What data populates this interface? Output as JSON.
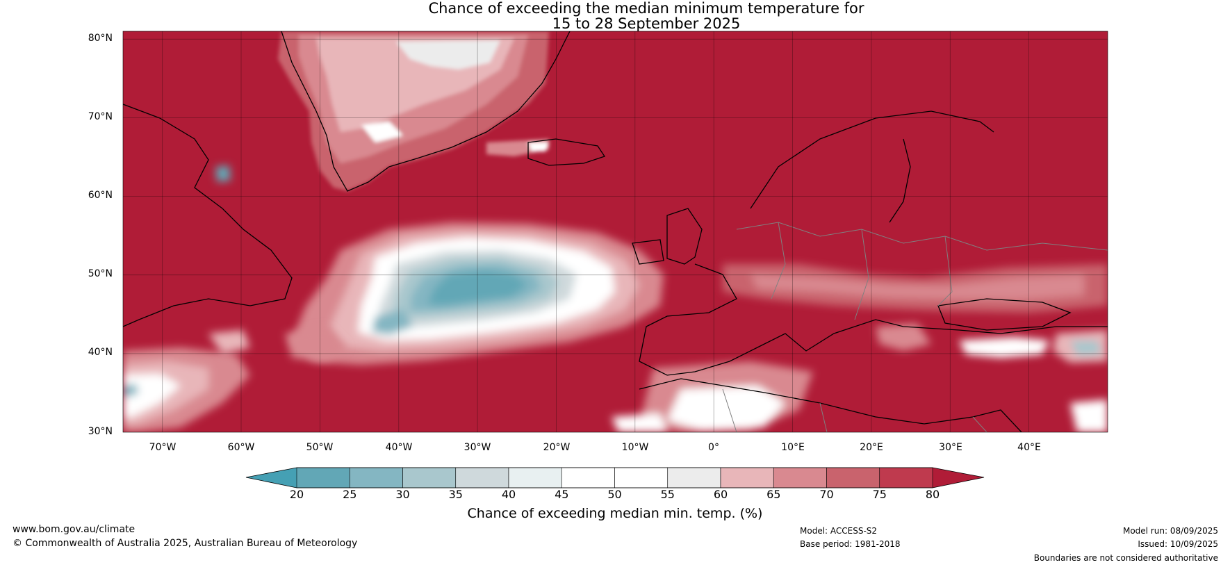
{
  "title": {
    "line1": "Chance of exceeding the median minimum temperature for",
    "line2": "15 to 28 September 2025"
  },
  "map": {
    "lat_labels": [
      "80°N",
      "70°N",
      "60°N",
      "50°N",
      "40°N",
      "30°N"
    ],
    "lon_labels": [
      "70°W",
      "60°W",
      "50°W",
      "40°W",
      "30°W",
      "20°W",
      "10°W",
      "0°",
      "10°E",
      "20°E",
      "30°E",
      "40°E"
    ],
    "lat_range": [
      30,
      81
    ],
    "lon_range": [
      -75,
      50
    ],
    "colors": {
      "above_80": "#b01c37",
      "c75_80": "#bf3a4e",
      "c70_75": "#c9636d",
      "c65_70": "#d98990",
      "c60_65": "#e8b6b9",
      "c55_60": "#ececec",
      "c45_55": "#ffffff",
      "c40_45": "#e8f0f1",
      "c35_40": "#cfd9dc",
      "c30_35": "#a9c7cd",
      "c25_30": "#84b6c2",
      "c20_25": "#62a7b6",
      "below_20": "#45a0b4",
      "land_outline": "#000000",
      "border": "#808080"
    }
  },
  "colorbar": {
    "ticks": [
      "20",
      "25",
      "30",
      "35",
      "40",
      "45",
      "50",
      "55",
      "60",
      "65",
      "70",
      "75",
      "80"
    ],
    "segment_colors": [
      "#62a7b6",
      "#84b6c2",
      "#a9c7cd",
      "#cfd9dc",
      "#e8f0f1",
      "#ffffff",
      "#ffffff",
      "#ececec",
      "#e8b6b9",
      "#d98990",
      "#c9636d",
      "#bf3a4e"
    ],
    "low_color": "#45a0b4",
    "high_color": "#b01c37",
    "label": "Chance of exceeding median min. temp. (%)"
  },
  "footer": {
    "website": "www.bom.gov.au/climate",
    "copyright": "© Commonwealth of Australia 2025, Australian Bureau of Meteorology",
    "model": "Model: ACCESS-S2",
    "base_period": "Base period: 1981-2018",
    "model_run": "Model run: 08/09/2025",
    "issued": "Issued: 10/09/2025",
    "disclaimer": "Boundaries are not considered authoritative"
  }
}
